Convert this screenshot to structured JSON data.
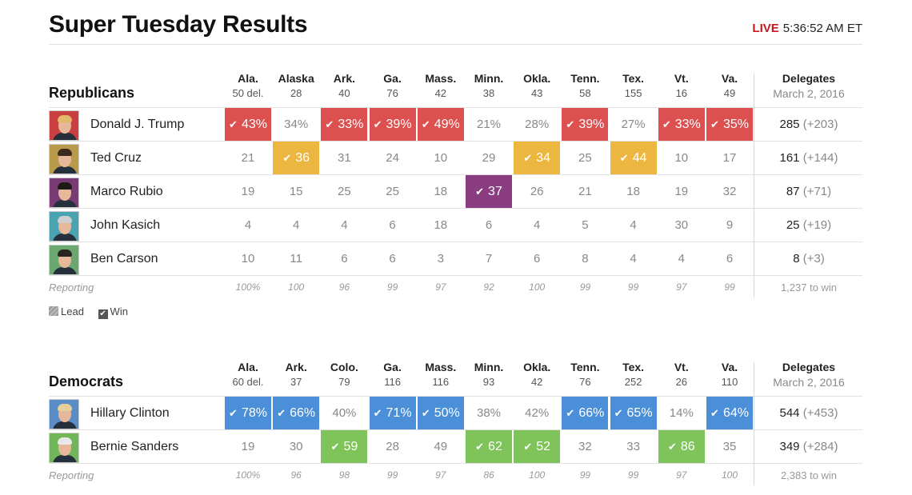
{
  "title": "Super Tuesday Results",
  "live": {
    "label": "LIVE",
    "time": "5:36:52 AM ET"
  },
  "colors": {
    "rep": "#dd5050",
    "cruz": "#ebb740",
    "rubio": "#8b3d82",
    "clinton": "#4a8fd8",
    "sanders": "#7ec45a"
  },
  "republicans": {
    "party": "Republicans",
    "states": [
      {
        "abbr": "Ala.",
        "delegates": "50 del."
      },
      {
        "abbr": "Alaska",
        "delegates": "28"
      },
      {
        "abbr": "Ark.",
        "delegates": "40"
      },
      {
        "abbr": "Ga.",
        "delegates": "76"
      },
      {
        "abbr": "Mass.",
        "delegates": "42"
      },
      {
        "abbr": "Minn.",
        "delegates": "38"
      },
      {
        "abbr": "Okla.",
        "delegates": "43"
      },
      {
        "abbr": "Tenn.",
        "delegates": "58"
      },
      {
        "abbr": "Tex.",
        "delegates": "155"
      },
      {
        "abbr": "Vt.",
        "delegates": "16"
      },
      {
        "abbr": "Va.",
        "delegates": "49"
      }
    ],
    "delegates_header": {
      "label": "Delegates",
      "date": "March 2, 2016"
    },
    "candidates": [
      {
        "name": "Donald J. Trump",
        "avatar_bg": "#c94040",
        "hair": "#e2b86a",
        "color": "#dd5050",
        "cells": [
          [
            "43%",
            1
          ],
          [
            "34%",
            0
          ],
          [
            "33%",
            1
          ],
          [
            "39%",
            1
          ],
          [
            "49%",
            1
          ],
          [
            "21%",
            0
          ],
          [
            "28%",
            0
          ],
          [
            "39%",
            1
          ],
          [
            "27%",
            0
          ],
          [
            "33%",
            1
          ],
          [
            "35%",
            1
          ]
        ],
        "delegates": "285",
        "gain": "(+203)"
      },
      {
        "name": "Ted Cruz",
        "avatar_bg": "#b89a4a",
        "hair": "#3a2a20",
        "color": "#ebb740",
        "cells": [
          [
            "21",
            0
          ],
          [
            "36",
            1
          ],
          [
            "31",
            0
          ],
          [
            "24",
            0
          ],
          [
            "10",
            0
          ],
          [
            "29",
            0
          ],
          [
            "34",
            1
          ],
          [
            "25",
            0
          ],
          [
            "44",
            1
          ],
          [
            "10",
            0
          ],
          [
            "17",
            0
          ]
        ],
        "delegates": "161",
        "gain": "(+144)"
      },
      {
        "name": "Marco Rubio",
        "avatar_bg": "#7a3a74",
        "hair": "#1e1a18",
        "color": "#8b3d82",
        "cells": [
          [
            "19",
            0
          ],
          [
            "15",
            0
          ],
          [
            "25",
            0
          ],
          [
            "25",
            0
          ],
          [
            "18",
            0
          ],
          [
            "37",
            1
          ],
          [
            "26",
            0
          ],
          [
            "21",
            0
          ],
          [
            "18",
            0
          ],
          [
            "19",
            0
          ],
          [
            "32",
            0
          ]
        ],
        "delegates": "87",
        "gain": "(+71)"
      },
      {
        "name": "John Kasich",
        "avatar_bg": "#4aa3b0",
        "hair": "#cfcfcf",
        "color": "#4aa3b0",
        "cells": [
          [
            "4",
            0
          ],
          [
            "4",
            0
          ],
          [
            "4",
            0
          ],
          [
            "6",
            0
          ],
          [
            "18",
            0
          ],
          [
            "6",
            0
          ],
          [
            "4",
            0
          ],
          [
            "5",
            0
          ],
          [
            "4",
            0
          ],
          [
            "30",
            0
          ],
          [
            "9",
            0
          ]
        ],
        "delegates": "25",
        "gain": "(+19)"
      },
      {
        "name": "Ben Carson",
        "avatar_bg": "#6aa870",
        "hair": "#2a2420",
        "color": "#6aa870",
        "cells": [
          [
            "10",
            0
          ],
          [
            "11",
            0
          ],
          [
            "6",
            0
          ],
          [
            "6",
            0
          ],
          [
            "3",
            0
          ],
          [
            "7",
            0
          ],
          [
            "6",
            0
          ],
          [
            "8",
            0
          ],
          [
            "4",
            0
          ],
          [
            "4",
            0
          ],
          [
            "6",
            0
          ]
        ],
        "delegates": "8",
        "gain": "(+3)"
      }
    ],
    "reporting_label": "Reporting",
    "reporting": [
      "100%",
      "100",
      "96",
      "99",
      "97",
      "92",
      "100",
      "99",
      "99",
      "97",
      "99"
    ],
    "to_win": "1,237 to win"
  },
  "legend": {
    "lead": "Lead",
    "win": "Win"
  },
  "democrats": {
    "party": "Democrats",
    "states": [
      {
        "abbr": "Ala.",
        "delegates": "60 del."
      },
      {
        "abbr": "Ark.",
        "delegates": "37"
      },
      {
        "abbr": "Colo.",
        "delegates": "79"
      },
      {
        "abbr": "Ga.",
        "delegates": "116"
      },
      {
        "abbr": "Mass.",
        "delegates": "116"
      },
      {
        "abbr": "Minn.",
        "delegates": "93"
      },
      {
        "abbr": "Okla.",
        "delegates": "42"
      },
      {
        "abbr": "Tenn.",
        "delegates": "76"
      },
      {
        "abbr": "Tex.",
        "delegates": "252"
      },
      {
        "abbr": "Vt.",
        "delegates": "26"
      },
      {
        "abbr": "Va.",
        "delegates": "110"
      }
    ],
    "delegates_header": {
      "label": "Delegates",
      "date": "March 2, 2016"
    },
    "candidates": [
      {
        "name": "Hillary Clinton",
        "avatar_bg": "#5a8cc8",
        "hair": "#e6cf9a",
        "color": "#4a8fd8",
        "cells": [
          [
            "78%",
            1
          ],
          [
            "66%",
            1
          ],
          [
            "40%",
            0
          ],
          [
            "71%",
            1
          ],
          [
            "50%",
            1
          ],
          [
            "38%",
            0
          ],
          [
            "42%",
            0
          ],
          [
            "66%",
            1
          ],
          [
            "65%",
            1
          ],
          [
            "14%",
            0
          ],
          [
            "64%",
            1
          ]
        ],
        "delegates": "544",
        "gain": "(+453)"
      },
      {
        "name": "Bernie Sanders",
        "avatar_bg": "#72b65a",
        "hair": "#e8e8e8",
        "color": "#7ec45a",
        "cells": [
          [
            "19",
            0
          ],
          [
            "30",
            0
          ],
          [
            "59",
            1
          ],
          [
            "28",
            0
          ],
          [
            "49",
            0
          ],
          [
            "62",
            1
          ],
          [
            "52",
            1
          ],
          [
            "32",
            0
          ],
          [
            "33",
            0
          ],
          [
            "86",
            1
          ],
          [
            "35",
            0
          ]
        ],
        "delegates": "349",
        "gain": "(+284)"
      }
    ],
    "reporting_label": "Reporting",
    "reporting": [
      "100%",
      "96",
      "98",
      "99",
      "97",
      "86",
      "100",
      "99",
      "99",
      "97",
      "100"
    ],
    "to_win": "2,383 to win"
  }
}
